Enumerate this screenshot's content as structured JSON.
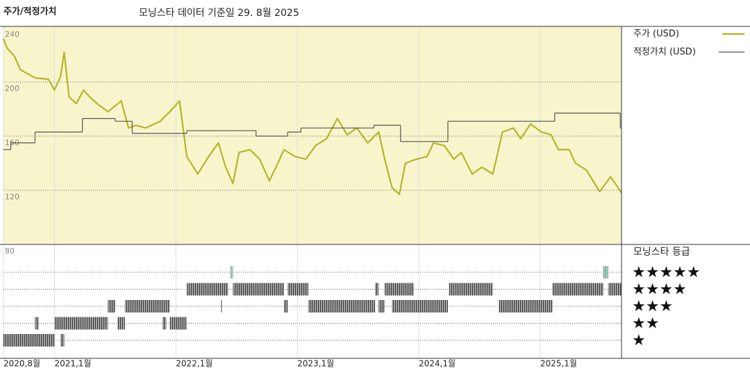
{
  "chart_data": {
    "type": "line",
    "title": "주가/적정가치",
    "subtitle": "모닝스타 데이터 기준일 29. 8월 2025",
    "xlim": [
      2020.58,
      2025.67
    ],
    "xticks": [
      {
        "value": 2020.58,
        "label": "2020,8월"
      },
      {
        "value": 2021.0,
        "label": "2021,1월"
      },
      {
        "value": 2022.0,
        "label": "2022,1월"
      },
      {
        "value": 2023.0,
        "label": "2023,1월"
      },
      {
        "value": 2024.0,
        "label": "2024,1월"
      },
      {
        "value": 2025.0,
        "label": "2025,1월"
      }
    ],
    "ylim": [
      80,
      240
    ],
    "yticks": [
      80,
      120,
      160,
      200,
      240
    ],
    "x": [
      2020.58,
      2020.61,
      2020.67,
      2020.72,
      2020.84,
      2020.95,
      2021.0,
      2021.05,
      2021.08,
      2021.12,
      2021.18,
      2021.24,
      2021.29,
      2021.35,
      2021.44,
      2021.55,
      2021.61,
      2021.67,
      2021.75,
      2021.87,
      2021.95,
      2022.03,
      2022.09,
      2022.18,
      2022.27,
      2022.35,
      2022.41,
      2022.47,
      2022.52,
      2022.61,
      2022.69,
      2022.77,
      2022.84,
      2022.89,
      2022.98,
      2023.07,
      2023.15,
      2023.24,
      2023.33,
      2023.41,
      2023.49,
      2023.58,
      2023.67,
      2023.72,
      2023.78,
      2023.84,
      2023.89,
      2023.98,
      2024.07,
      2024.12,
      2024.21,
      2024.29,
      2024.35,
      2024.44,
      2024.52,
      2024.61,
      2024.69,
      2024.78,
      2024.84,
      2024.92,
      2025.01,
      2025.09,
      2025.15,
      2025.24,
      2025.29,
      2025.38,
      2025.49,
      2025.58,
      2025.67
    ],
    "series": [
      {
        "name": "주가 (USD)",
        "color": "#b3b52c",
        "values": [
          232,
          225,
          219,
          209,
          203,
          202,
          194,
          204,
          222,
          189,
          184,
          194,
          189,
          184,
          178,
          186,
          166,
          168,
          166,
          171,
          178,
          186,
          145,
          132,
          145,
          155,
          137,
          125,
          148,
          150,
          143,
          127,
          140,
          150,
          145,
          143,
          153,
          158,
          173,
          161,
          166,
          155,
          163,
          143,
          122,
          117,
          140,
          143,
          145,
          155,
          153,
          143,
          148,
          132,
          137,
          132,
          163,
          166,
          158,
          169,
          163,
          161,
          150,
          150,
          140,
          135,
          119,
          130,
          118
        ]
      },
      {
        "name": "적정가치 (USD)",
        "color": "#555555",
        "step": true,
        "x": [
          2020.58,
          2020.64,
          2020.84,
          2021.23,
          2021.5,
          2021.64,
          2022.09,
          2022.66,
          2022.92,
          2023.03,
          2023.63,
          2023.85,
          2024.24,
          2025.12,
          2025.66
        ],
        "values": [
          150,
          155,
          163,
          173,
          171,
          162,
          164,
          160,
          163,
          166,
          168,
          156,
          171,
          177,
          166
        ]
      }
    ],
    "rating": {
      "title": "모닝스타 등급",
      "labels": [
        "★",
        "★★",
        "★★★",
        "★★★★",
        "★★★★★"
      ],
      "segments": [
        {
          "stars": 1,
          "start": 2020.58,
          "end": 2021.0
        },
        {
          "stars": 1,
          "start": 2021.05,
          "end": 2021.08
        },
        {
          "stars": 2,
          "start": 2020.84,
          "end": 2020.87
        },
        {
          "stars": 2,
          "start": 2021.0,
          "end": 2021.44
        },
        {
          "stars": 2,
          "start": 2021.52,
          "end": 2021.58
        },
        {
          "stars": 2,
          "start": 2021.89,
          "end": 2021.92
        },
        {
          "stars": 2,
          "start": 2021.95,
          "end": 2022.09
        },
        {
          "stars": 3,
          "start": 2021.44,
          "end": 2021.5
        },
        {
          "stars": 3,
          "start": 2021.58,
          "end": 2021.95
        },
        {
          "stars": 3,
          "start": 2022.37,
          "end": 2022.38
        },
        {
          "stars": 3,
          "start": 2022.89,
          "end": 2022.92
        },
        {
          "stars": 3,
          "start": 2023.09,
          "end": 2023.64
        },
        {
          "stars": 3,
          "start": 2023.67,
          "end": 2023.72
        },
        {
          "stars": 3,
          "start": 2023.78,
          "end": 2024.24
        },
        {
          "stars": 3,
          "start": 2024.66,
          "end": 2025.1
        },
        {
          "stars": 4,
          "start": 2022.09,
          "end": 2022.43
        },
        {
          "stars": 4,
          "start": 2022.47,
          "end": 2022.89
        },
        {
          "stars": 4,
          "start": 2022.92,
          "end": 2023.09
        },
        {
          "stars": 4,
          "start": 2023.64,
          "end": 2023.67
        },
        {
          "stars": 4,
          "start": 2023.72,
          "end": 2023.96
        },
        {
          "stars": 4,
          "start": 2024.25,
          "end": 2024.61
        },
        {
          "stars": 4,
          "start": 2025.1,
          "end": 2025.52
        },
        {
          "stars": 4,
          "start": 2025.56,
          "end": 2025.67
        },
        {
          "stars": 5,
          "start": 2022.45,
          "end": 2022.47
        },
        {
          "stars": 5,
          "start": 2025.52,
          "end": 2025.56
        }
      ],
      "colors": [
        "#333333",
        "#333333",
        "#333333",
        "#333333",
        "#5a9a80"
      ]
    },
    "background": "#f8f5cc"
  }
}
